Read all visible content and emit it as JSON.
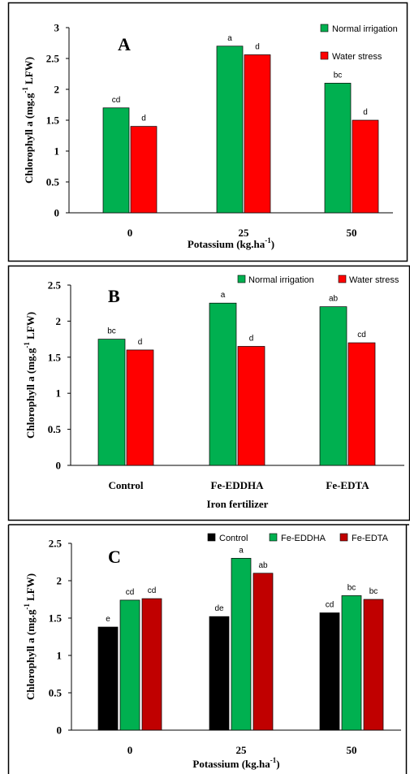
{
  "chart_data": [
    {
      "type": "bar",
      "panel_letter": "A",
      "categories": [
        "0",
        "25",
        "50"
      ],
      "series": [
        {
          "name": "Normal irrigation",
          "color": "#00B050",
          "values": [
            1.7,
            2.7,
            2.1
          ],
          "labels": [
            "cd",
            "a",
            "bc"
          ]
        },
        {
          "name": "Water stress",
          "color": "#FF0000",
          "values": [
            1.4,
            2.56,
            1.5
          ],
          "labels": [
            "d",
            "d",
            "d"
          ]
        }
      ],
      "xlabel": "Potassium (kg.ha",
      "xlabel_sup": "-1",
      "xlabel_tail": ")",
      "ylabel": "Chlorophyll a (mg.g",
      "ylabel_sup": "-1",
      "ylabel_tail": " LFW)",
      "ylim": [
        0,
        3
      ],
      "yticks": [
        "0",
        "0.5",
        "1",
        "1.5",
        "2",
        "2.5",
        "3"
      ],
      "legend": "top-right",
      "grid": false
    },
    {
      "type": "bar",
      "panel_letter": "B",
      "categories": [
        "Control",
        "Fe-EDDHA",
        "Fe-EDTA"
      ],
      "series": [
        {
          "name": "Normal irrigation",
          "color": "#00B050",
          "values": [
            1.75,
            2.25,
            2.2
          ],
          "labels": [
            "bc",
            "a",
            "ab"
          ]
        },
        {
          "name": "Water stress",
          "color": "#FF0000",
          "values": [
            1.6,
            1.65,
            1.7
          ],
          "labels": [
            "d",
            "d",
            "cd"
          ]
        }
      ],
      "xlabel": "Iron fertilizer",
      "xlabel_sup": "",
      "xlabel_tail": "",
      "ylabel": "Chlorophyll a (mg.g",
      "ylabel_sup": "-1",
      "ylabel_tail": " LFW)",
      "ylim": [
        0,
        2.5
      ],
      "yticks": [
        "0",
        "0.5",
        "1",
        "1.5",
        "2",
        "2.5"
      ],
      "legend": "top",
      "grid": false
    },
    {
      "type": "bar",
      "panel_letter": "C",
      "categories": [
        "0",
        "25",
        "50"
      ],
      "series": [
        {
          "name": "Control",
          "color": "#000000",
          "values": [
            1.38,
            1.52,
            1.57
          ],
          "labels": [
            "e",
            "de",
            "cd"
          ]
        },
        {
          "name": "Fe-EDDHA",
          "color": "#00B050",
          "values": [
            1.74,
            2.3,
            1.8
          ],
          "labels": [
            "cd",
            "a",
            "bc"
          ]
        },
        {
          "name": "Fe-EDTA",
          "color": "#C00000",
          "values": [
            1.76,
            2.1,
            1.75
          ],
          "labels": [
            "cd",
            "ab",
            "bc"
          ]
        }
      ],
      "xlabel": "Potassium (kg.ha",
      "xlabel_sup": "-1",
      "xlabel_tail": ")",
      "ylabel": "Chlorophyll a (mg.g",
      "ylabel_sup": "-1",
      "ylabel_tail": " LFW)",
      "ylim": [
        0,
        2.5
      ],
      "yticks": [
        "0",
        "0.5",
        "1",
        "1.5",
        "2",
        "2.5"
      ],
      "legend": "top",
      "grid": false
    }
  ]
}
